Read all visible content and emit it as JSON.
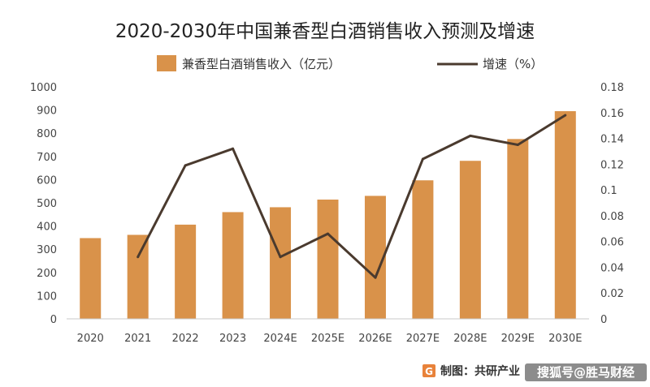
{
  "chart_data": {
    "type": "bar+line",
    "title": "2020-2030年中国兼香型白酒销售收入预测及增速",
    "categories": [
      "2020",
      "2021",
      "2022",
      "2023",
      "2024E",
      "2025E",
      "2026E",
      "2027E",
      "2028E",
      "2029E",
      "2030E"
    ],
    "series": [
      {
        "name": "兼香型白酒销售收入（亿元）",
        "type": "bar",
        "axis": "left",
        "color": "#D9924A",
        "values": [
          348,
          362,
          406,
          460,
          481,
          514,
          530,
          597,
          681,
          775,
          895
        ]
      },
      {
        "name": "增速（%）",
        "type": "line",
        "axis": "right",
        "color": "#4A3A2E",
        "values": [
          null,
          0.048,
          0.119,
          0.132,
          0.048,
          0.066,
          0.032,
          0.124,
          0.142,
          0.135,
          0.158
        ]
      }
    ],
    "y_left": {
      "min": 0,
      "max": 1000,
      "ticks": [
        "0",
        "100",
        "200",
        "300",
        "400",
        "500",
        "600",
        "700",
        "800",
        "900",
        "1000"
      ]
    },
    "y_right": {
      "min": 0,
      "max": 0.18,
      "ticks": [
        "0",
        "0.02",
        "0.04",
        "0.06",
        "0.08",
        "0.1",
        "0.12",
        "0.14",
        "0.16",
        "0.18"
      ]
    },
    "legend_position": "top",
    "grid": false
  },
  "footer": {
    "source_label": "制图：共研产业",
    "watermark": "搜狐号@胜马财经"
  },
  "colors": {
    "bar": "#D9924A",
    "line": "#4A3A2E",
    "axis": "#C8C8C8",
    "source_icon": "#E8823A"
  }
}
